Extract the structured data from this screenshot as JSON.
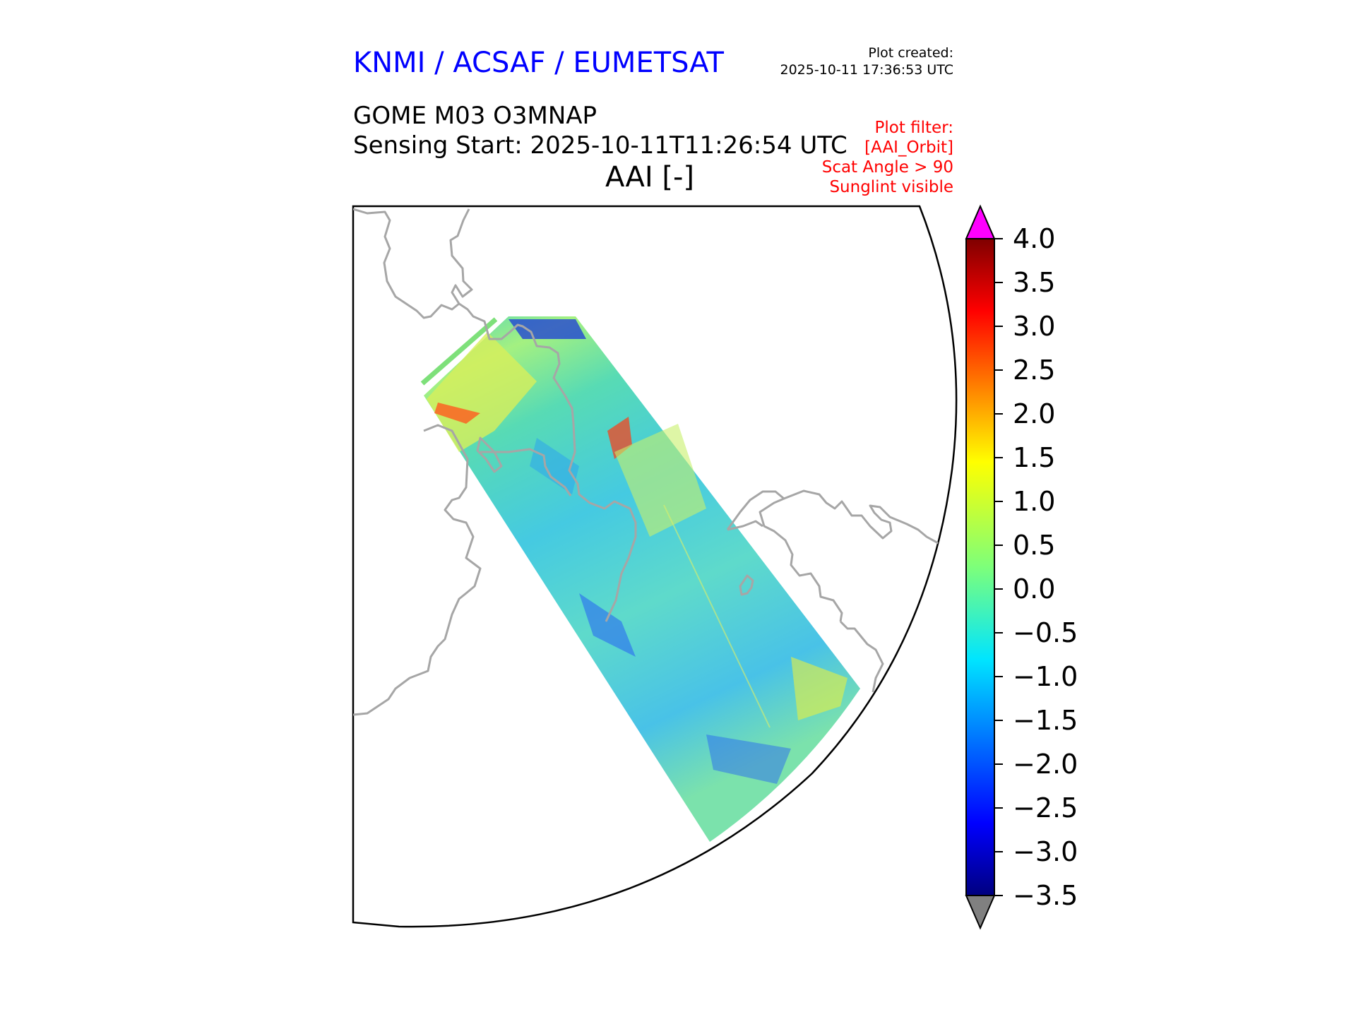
{
  "header": {
    "credit": "KNMI / ACSAF / EUMETSAT",
    "plot_created_label": "Plot created:",
    "plot_created_time": "2025-10-11 17:36:53 UTC",
    "product": "GOME M03 O3MNAP",
    "sensing_start": "Sensing Start: 2025-10-11T11:26:54 UTC",
    "variable": "AAI [-]",
    "plot_filter": [
      "Plot filter:",
      "[AAI_Orbit]",
      "Scat Angle > 90",
      "Sunglint visible"
    ]
  },
  "colorbar": {
    "ticks": [
      "4.0",
      "3.5",
      "3.0",
      "2.5",
      "2.0",
      "1.5",
      "1.0",
      "0.5",
      "0.0",
      "−0.5",
      "−1.0",
      "−1.5",
      "−2.0",
      "−2.5",
      "−3.0",
      "−3.5"
    ],
    "min": -3.5,
    "max": 4.0,
    "over_color": "#ff00ff",
    "under_color": "#808080",
    "colormap": "jet"
  },
  "map": {
    "coastline_color": "#a6a6a6",
    "swath_mean_value": 0.0
  }
}
